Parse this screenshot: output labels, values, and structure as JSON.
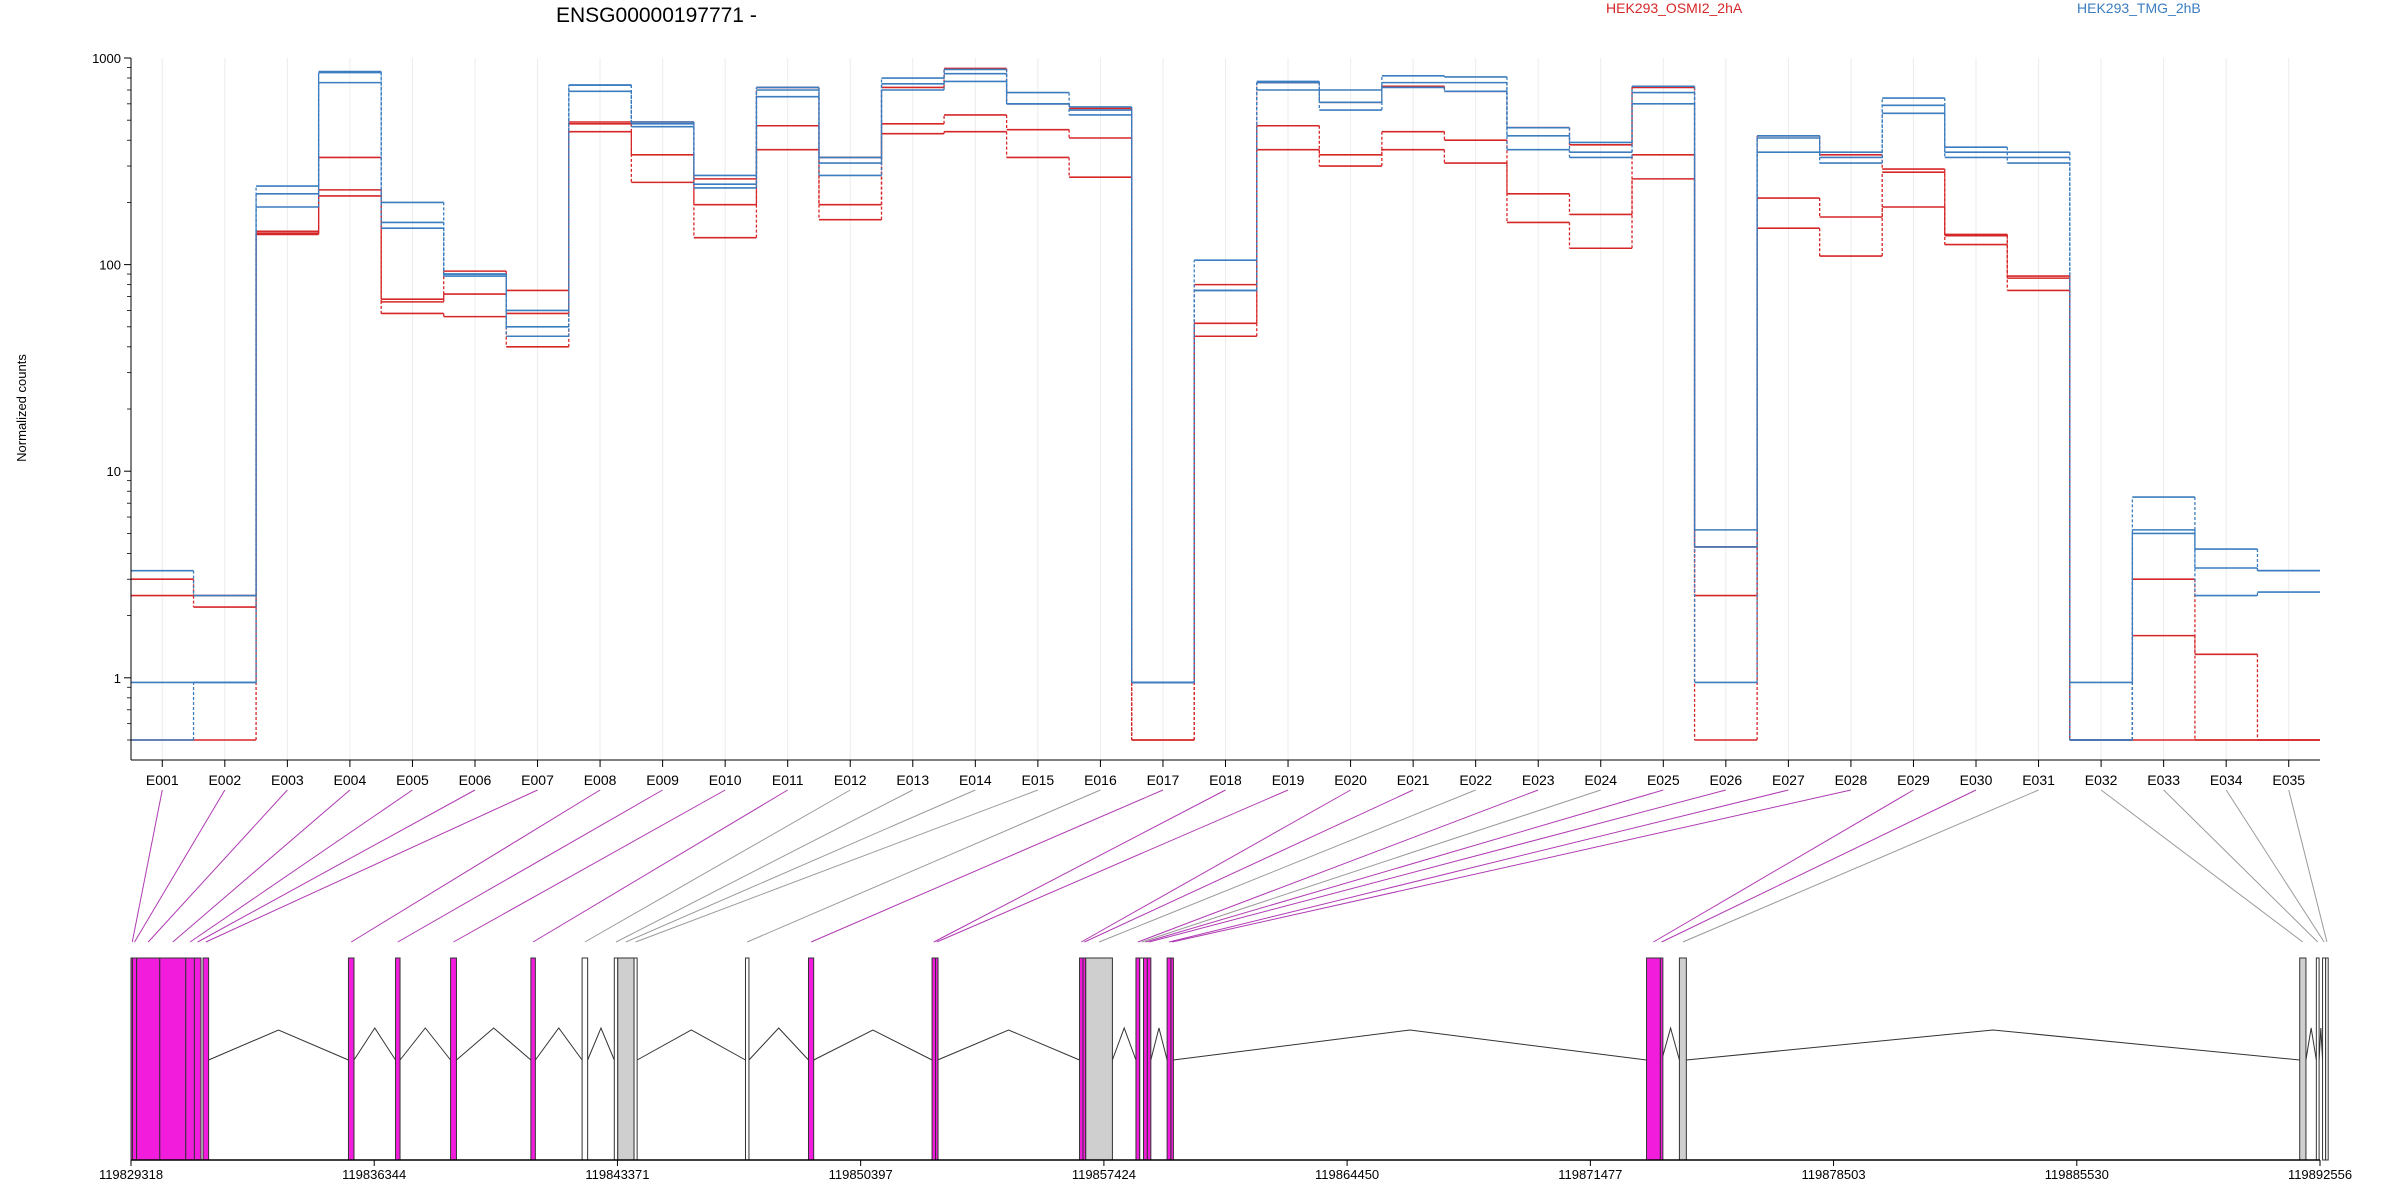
{
  "chart_data": {
    "type": "line",
    "title": "ENSG00000197771 -",
    "ylabel": "Normalized counts",
    "yscale": "log",
    "ylim": [
      0.5,
      1000
    ],
    "yticks": [
      "1",
      "10",
      "100",
      "1000"
    ],
    "categories": [
      "E001",
      "E002",
      "E003",
      "E004",
      "E005",
      "E006",
      "E007",
      "E008",
      "E009",
      "E010",
      "E011",
      "E012",
      "E013",
      "E014",
      "E015",
      "E016",
      "E017",
      "E018",
      "E019",
      "E020",
      "E021",
      "E022",
      "E023",
      "E024",
      "E025",
      "E026",
      "E027",
      "E028",
      "E029",
      "E030",
      "E031",
      "E032",
      "E033",
      "E034",
      "E035"
    ],
    "legend": [
      {
        "name": "HEK293_OSMI2_2hA",
        "color": "#d62728"
      },
      {
        "name": "HEK293_TMG_2hB",
        "color": "#3b7dbf"
      }
    ],
    "series": [
      {
        "group": "HEK293_OSMI2_2hA",
        "color": "#d62728",
        "values": [
          3.0,
          2.5,
          145,
          330,
          68,
          93,
          75,
          490,
          490,
          260,
          720,
          330,
          720,
          890,
          600,
          570,
          0.95,
          80,
          760,
          610,
          730,
          690,
          460,
          380,
          720,
          4.3,
          420,
          340,
          290,
          140,
          88,
          0.5,
          3.0,
          1.3,
          0.5
        ]
      },
      {
        "group": "HEK293_OSMI2_2hA",
        "color": "#d62728",
        "values": [
          2.5,
          2.2,
          142,
          230,
          66,
          72,
          58,
          440,
          340,
          195,
          470,
          195,
          480,
          530,
          450,
          410,
          0.5,
          52,
          470,
          340,
          440,
          400,
          220,
          175,
          340,
          2.5,
          210,
          170,
          280,
          138,
          86,
          0.5,
          1.6,
          0.5,
          0.5
        ]
      },
      {
        "group": "HEK293_OSMI2_2hA",
        "color": "#d62728",
        "values": [
          0.5,
          0.5,
          140,
          215,
          58,
          56,
          40,
          480,
          250,
          135,
          360,
          165,
          430,
          440,
          330,
          265,
          0.5,
          45,
          360,
          300,
          360,
          310,
          160,
          120,
          260,
          0.5,
          150,
          110,
          190,
          125,
          75,
          0.5,
          0.5,
          0.5,
          0.5
        ]
      },
      {
        "group": "HEK293_TMG_2hB",
        "color": "#3b7dbf",
        "values": [
          3.3,
          2.5,
          240,
          860,
          200,
          90,
          60,
          740,
          480,
          270,
          700,
          330,
          800,
          880,
          680,
          580,
          0.95,
          105,
          770,
          700,
          820,
          810,
          460,
          390,
          730,
          5.2,
          420,
          350,
          640,
          370,
          350,
          0.95,
          7.5,
          4.2,
          3.3
        ]
      },
      {
        "group": "HEK293_TMG_2hB",
        "color": "#3b7dbf",
        "values": [
          0.95,
          0.95,
          220,
          850,
          160,
          90,
          50,
          740,
          490,
          245,
          720,
          310,
          750,
          840,
          600,
          560,
          0.95,
          75,
          760,
          610,
          760,
          760,
          420,
          350,
          680,
          4.3,
          410,
          330,
          590,
          350,
          330,
          0.5,
          5.2,
          3.4,
          3.3
        ]
      },
      {
        "group": "HEK293_TMG_2hB",
        "color": "#3b7dbf",
        "values": [
          0.5,
          0.95,
          190,
          760,
          150,
          88,
          45,
          690,
          465,
          235,
          650,
          270,
          700,
          770,
          600,
          530,
          0.95,
          75,
          700,
          560,
          720,
          690,
          360,
          330,
          600,
          0.95,
          350,
          310,
          540,
          330,
          310,
          0.5,
          5.0,
          2.5,
          2.6
        ]
      }
    ],
    "gene_model": {
      "axis_ticks": [
        "119829318",
        "119836344",
        "119843371",
        "119850397",
        "119857424",
        "119864450",
        "119871477",
        "119878503",
        "119885530",
        "119892556"
      ],
      "axis_range": [
        119829318,
        119892556
      ],
      "exons": [
        {
          "id": "E001",
          "start": 119829318,
          "end": 119829360,
          "type": "tested"
        },
        {
          "id": "E002",
          "start": 119829360,
          "end": 119829480,
          "type": "tested"
        },
        {
          "id": "E003",
          "start": 119829480,
          "end": 119830150,
          "type": "tested"
        },
        {
          "id": "E004",
          "start": 119830150,
          "end": 119830900,
          "type": "tested"
        },
        {
          "id": "E005",
          "start": 119830900,
          "end": 119831150,
          "type": "tested"
        },
        {
          "id": "E006",
          "start": 119831150,
          "end": 119831340,
          "type": "tested"
        },
        {
          "id": "E007",
          "start": 119831400,
          "end": 119831560,
          "type": "tested"
        },
        {
          "id": "E008",
          "start": 119835600,
          "end": 119835760,
          "type": "tested"
        },
        {
          "id": "E009",
          "start": 119836960,
          "end": 119837090,
          "type": "tested"
        },
        {
          "id": "E010",
          "start": 119838550,
          "end": 119838720,
          "type": "tested"
        },
        {
          "id": "E011",
          "start": 119840870,
          "end": 119841000,
          "type": "tested"
        },
        {
          "id": "E012",
          "start": 119842350,
          "end": 119842510,
          "type": "untested"
        },
        {
          "id": "E013",
          "start": 119843280,
          "end": 119843380,
          "type": "untested"
        },
        {
          "id": "E014",
          "start": 119843380,
          "end": 119843850,
          "type": "untested"
        },
        {
          "id": "E015",
          "start": 119843850,
          "end": 119843940,
          "type": "untested"
        },
        {
          "id": "E016",
          "start": 119847070,
          "end": 119847170,
          "type": "untested"
        },
        {
          "id": "E017",
          "start": 119848890,
          "end": 119849040,
          "type": "tested"
        },
        {
          "id": "E018",
          "start": 119852460,
          "end": 119852560,
          "type": "tested"
        },
        {
          "id": "E019",
          "start": 119852560,
          "end": 119852620,
          "type": "tested"
        },
        {
          "id": "E020",
          "start": 119856720,
          "end": 119856820,
          "type": "tested"
        },
        {
          "id": "E021",
          "start": 119856820,
          "end": 119856900,
          "type": "tested"
        },
        {
          "id": "E022",
          "start": 119856900,
          "end": 119857670,
          "type": "untested"
        },
        {
          "id": "E023",
          "start": 119858350,
          "end": 119858460,
          "type": "tested"
        },
        {
          "id": "E024",
          "start": 119858460,
          "end": 119858570,
          "type": "untested"
        },
        {
          "id": "E025",
          "start": 119858570,
          "end": 119858680,
          "type": "tested"
        },
        {
          "id": "E026",
          "start": 119858680,
          "end": 119858780,
          "type": "tested"
        },
        {
          "id": "E027",
          "start": 119859250,
          "end": 119859360,
          "type": "tested"
        },
        {
          "id": "E028",
          "start": 119859360,
          "end": 119859430,
          "type": "tested"
        },
        {
          "id": "E029",
          "start": 119873100,
          "end": 119873500,
          "type": "tested"
        },
        {
          "id": "E030",
          "start": 119873500,
          "end": 119873540,
          "type": "tested"
        },
        {
          "id": "E031",
          "start": 119874050,
          "end": 119874250,
          "type": "untested"
        },
        {
          "id": "E032",
          "start": 119891970,
          "end": 119892150,
          "type": "untested"
        },
        {
          "id": "E033",
          "start": 119892450,
          "end": 119892530,
          "type": "untested"
        },
        {
          "id": "E034",
          "start": 119892630,
          "end": 119892720,
          "type": "untested"
        },
        {
          "id": "E035",
          "start": 119892720,
          "end": 119892790,
          "type": "untested"
        }
      ]
    }
  }
}
